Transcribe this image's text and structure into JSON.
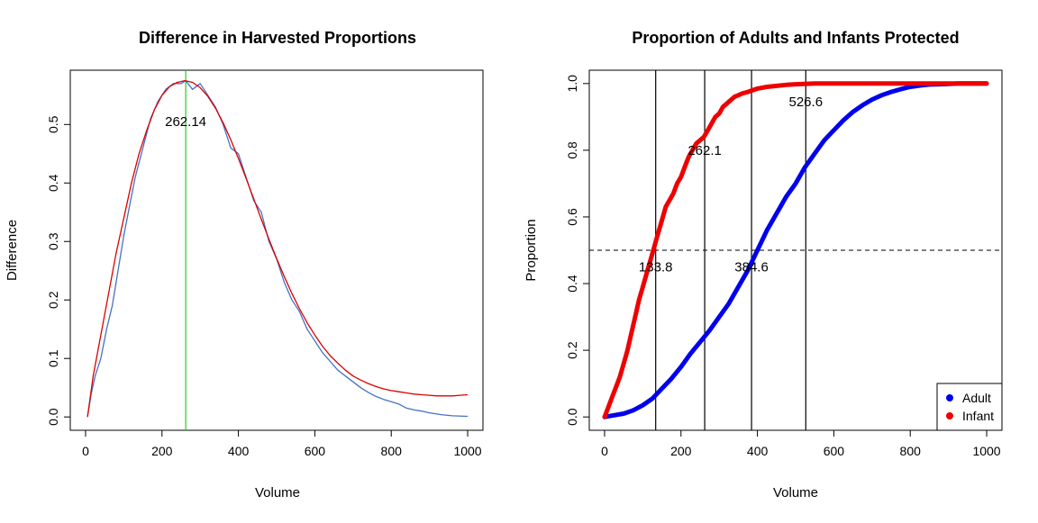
{
  "chart_data": [
    {
      "type": "line",
      "title": "Difference in Harvested Proportions",
      "xlabel": "Volume",
      "ylabel": "Difference",
      "xlim": [
        0,
        1000
      ],
      "ylim": [
        0,
        0.57
      ],
      "xticks": [
        0,
        200,
        400,
        600,
        800,
        1000
      ],
      "xtick_labels": [
        "0",
        "200",
        "400",
        "600",
        "800",
        "1000"
      ],
      "yticks": [
        0,
        0.1,
        0.2,
        0.3,
        0.4,
        0.5
      ],
      "ytick_labels": [
        "0.0",
        "0.1",
        "0.2",
        "0.3",
        "0.4",
        "0.5"
      ],
      "grid": false,
      "series": [
        {
          "color": "#4472c4",
          "x": [
            5,
            15,
            25,
            40,
            55,
            70,
            85,
            100,
            115,
            130,
            150,
            170,
            190,
            210,
            230,
            250,
            262,
            280,
            300,
            320,
            340,
            360,
            380,
            400,
            420,
            440,
            460,
            480,
            500,
            520,
            540,
            560,
            580,
            600,
            620,
            640,
            660,
            680,
            700,
            720,
            740,
            760,
            780,
            800,
            820,
            840,
            860,
            880,
            900,
            930,
            960,
            1000
          ],
          "y": [
            0.0,
            0.04,
            0.07,
            0.1,
            0.15,
            0.19,
            0.25,
            0.31,
            0.36,
            0.41,
            0.46,
            0.51,
            0.54,
            0.56,
            0.57,
            0.57,
            0.575,
            0.56,
            0.57,
            0.55,
            0.53,
            0.5,
            0.46,
            0.45,
            0.41,
            0.37,
            0.35,
            0.3,
            0.27,
            0.23,
            0.2,
            0.18,
            0.15,
            0.13,
            0.11,
            0.095,
            0.08,
            0.07,
            0.06,
            0.05,
            0.042,
            0.035,
            0.03,
            0.026,
            0.022,
            0.015,
            0.012,
            0.01,
            0.007,
            0.004,
            0.002,
            0.001
          ]
        },
        {
          "color": "#dd0000",
          "x": [
            5,
            20,
            40,
            60,
            80,
            100,
            120,
            140,
            160,
            180,
            200,
            220,
            240,
            260,
            280,
            300,
            320,
            340,
            360,
            380,
            400,
            420,
            440,
            460,
            480,
            500,
            520,
            540,
            560,
            580,
            600,
            620,
            640,
            660,
            680,
            700,
            720,
            740,
            760,
            780,
            800,
            820,
            840,
            860,
            880,
            900,
            920,
            940,
            960,
            980,
            1000
          ],
          "y": [
            0.0,
            0.07,
            0.14,
            0.21,
            0.28,
            0.34,
            0.4,
            0.45,
            0.49,
            0.525,
            0.55,
            0.565,
            0.572,
            0.575,
            0.572,
            0.563,
            0.548,
            0.528,
            0.503,
            0.474,
            0.442,
            0.408,
            0.373,
            0.338,
            0.304,
            0.271,
            0.24,
            0.211,
            0.185,
            0.161,
            0.14,
            0.121,
            0.105,
            0.092,
            0.08,
            0.07,
            0.063,
            0.057,
            0.052,
            0.048,
            0.045,
            0.043,
            0.041,
            0.039,
            0.038,
            0.037,
            0.036,
            0.036,
            0.036,
            0.037,
            0.038
          ]
        }
      ],
      "vlines": [
        {
          "x": 262.14,
          "color": "#22cc22"
        }
      ],
      "annotations": [
        {
          "text": "262.14",
          "x": 262,
          "y": 0.505
        }
      ]
    },
    {
      "type": "scatter",
      "title": "Proportion of Adults and Infants Protected",
      "xlabel": "Volume",
      "ylabel": "Proportion",
      "xlim": [
        0,
        1000
      ],
      "ylim": [
        0,
        1
      ],
      "xticks": [
        0,
        200,
        400,
        600,
        800,
        1000
      ],
      "xtick_labels": [
        "0",
        "200",
        "400",
        "600",
        "800",
        "1000"
      ],
      "yticks": [
        0,
        0.2,
        0.4,
        0.6,
        0.8,
        1.0
      ],
      "ytick_labels": [
        "0.0",
        "0.2",
        "0.4",
        "0.6",
        "0.8",
        "1.0"
      ],
      "grid": false,
      "legend": {
        "position": "bottom-right",
        "entries": [
          {
            "label": "Adult",
            "color": "#0000ee"
          },
          {
            "label": "Infant",
            "color": "#ee0000"
          }
        ]
      },
      "series": [
        {
          "name": "Adult",
          "color": "#0000ee",
          "x": [
            0,
            25,
            50,
            75,
            100,
            125,
            150,
            175,
            200,
            225,
            250,
            275,
            300,
            325,
            350,
            375,
            400,
            425,
            450,
            475,
            500,
            525,
            550,
            575,
            600,
            625,
            650,
            675,
            700,
            725,
            750,
            775,
            800,
            825,
            850,
            875,
            900,
            925,
            950,
            975,
            1000
          ],
          "y": [
            0.0,
            0.005,
            0.01,
            0.02,
            0.035,
            0.055,
            0.085,
            0.115,
            0.15,
            0.19,
            0.225,
            0.26,
            0.3,
            0.34,
            0.39,
            0.44,
            0.5,
            0.56,
            0.61,
            0.66,
            0.7,
            0.75,
            0.79,
            0.83,
            0.86,
            0.89,
            0.915,
            0.935,
            0.952,
            0.965,
            0.975,
            0.983,
            0.99,
            0.994,
            0.997,
            0.998,
            0.999,
            1.0,
            1.0,
            1.0,
            1.0
          ]
        },
        {
          "name": "Infant",
          "color": "#ee0000",
          "x": [
            0,
            10,
            20,
            30,
            40,
            50,
            60,
            70,
            80,
            90,
            100,
            110,
            120,
            130,
            140,
            150,
            160,
            170,
            180,
            190,
            200,
            210,
            220,
            230,
            240,
            250,
            260,
            270,
            280,
            290,
            300,
            310,
            320,
            330,
            340,
            350,
            360,
            375,
            400,
            425,
            450,
            475,
            500,
            550,
            600,
            700,
            800,
            1000
          ],
          "y": [
            0.0,
            0.03,
            0.06,
            0.09,
            0.12,
            0.16,
            0.2,
            0.25,
            0.3,
            0.35,
            0.39,
            0.43,
            0.47,
            0.51,
            0.55,
            0.59,
            0.63,
            0.65,
            0.67,
            0.7,
            0.72,
            0.75,
            0.78,
            0.8,
            0.82,
            0.83,
            0.84,
            0.86,
            0.88,
            0.9,
            0.91,
            0.93,
            0.94,
            0.95,
            0.96,
            0.965,
            0.97,
            0.975,
            0.985,
            0.99,
            0.993,
            0.996,
            0.998,
            1.0,
            1.0,
            1.0,
            1.0,
            1.0
          ]
        }
      ],
      "vlines": [
        {
          "x": 133.8
        },
        {
          "x": 262.1
        },
        {
          "x": 384.6
        },
        {
          "x": 526.6
        }
      ],
      "hlines": [
        {
          "y": 0.5,
          "style": "dashed"
        }
      ],
      "annotations": [
        {
          "text": "133.8",
          "x": 133.8,
          "y": 0.45
        },
        {
          "text": "384.6",
          "x": 384.6,
          "y": 0.45
        },
        {
          "text": "262.1",
          "x": 262.1,
          "y": 0.8
        },
        {
          "text": "526.6",
          "x": 526.6,
          "y": 0.945
        }
      ]
    }
  ]
}
